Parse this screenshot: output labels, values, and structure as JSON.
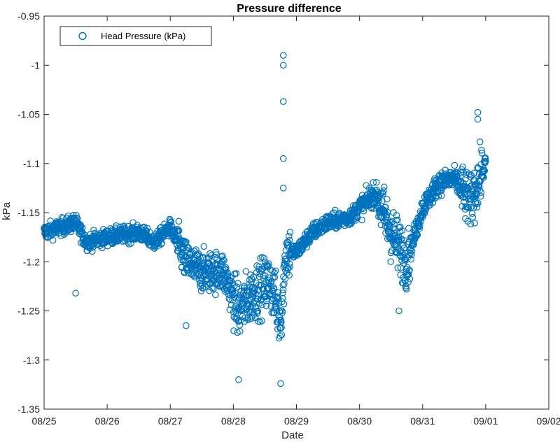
{
  "chart_data": {
    "type": "scatter",
    "title": "Pressure difference",
    "xlabel": "Date",
    "ylabel": "kPa",
    "x_axis": {
      "type": "date",
      "range": [
        "08/25",
        "09/02"
      ],
      "ticks": [
        "08/25",
        "08/26",
        "08/27",
        "08/28",
        "08/29",
        "08/30",
        "08/31",
        "09/01",
        "09/02"
      ]
    },
    "y_axis": {
      "reversed": true,
      "range": [
        -1.35,
        -0.95
      ],
      "ticks": [
        -0.95,
        -1,
        -1.05,
        -1.1,
        -1.15,
        -1.2,
        -1.25,
        -1.3,
        -1.35
      ],
      "tick_labels": [
        "-0.95",
        "-1",
        "-1.05",
        "-1.1",
        "-1.15",
        "-1.2",
        "-1.25",
        "-1.3",
        "-1.35"
      ]
    },
    "grid": false,
    "legend": {
      "position": "top-left",
      "entries": [
        "Head Pressure (kPa)"
      ]
    },
    "marker": "open-circle",
    "color": "#0072BD",
    "series": [
      {
        "name": "Head Pressure (kPa)",
        "points_description": "dense sampled trace",
        "trend": [
          [
            "08/25 00:00",
            -1.17
          ],
          [
            "08/25 06:00",
            -1.165
          ],
          [
            "08/25 12:00",
            -1.16
          ],
          [
            "08/25 16:00",
            -1.18
          ],
          [
            "08/26 00:00",
            -1.175
          ],
          [
            "08/26 12:00",
            -1.17
          ],
          [
            "08/26 18:00",
            -1.18
          ],
          [
            "08/27 00:00",
            -1.165
          ],
          [
            "08/27 06:00",
            -1.2
          ],
          [
            "08/27 12:00",
            -1.21
          ],
          [
            "08/27 20:00",
            -1.21
          ],
          [
            "08/28 02:00",
            -1.25
          ],
          [
            "08/28 08:00",
            -1.23
          ],
          [
            "08/28 14:00",
            -1.22
          ],
          [
            "08/28 18:00",
            -1.26
          ],
          [
            "08/28 20:00",
            -1.19
          ],
          [
            "08/29 00:00",
            -1.19
          ],
          [
            "08/29 06:00",
            -1.17
          ],
          [
            "08/29 12:00",
            -1.16
          ],
          [
            "08/29 20:00",
            -1.155
          ],
          [
            "08/30 06:00",
            -1.13
          ],
          [
            "08/30 12:00",
            -1.17
          ],
          [
            "08/30 18:00",
            -1.2
          ],
          [
            "08/31 00:00",
            -1.145
          ],
          [
            "08/31 06:00",
            -1.12
          ],
          [
            "08/31 12:00",
            -1.115
          ],
          [
            "08/31 18:00",
            -1.14
          ],
          [
            "09/01 00:00",
            -1.1
          ]
        ],
        "outliers": [
          [
            "08/28 19:00",
            -0.99
          ],
          [
            "08/28 19:00",
            -1.0
          ],
          [
            "08/28 19:00",
            -1.037
          ],
          [
            "08/28 19:00",
            -1.095
          ],
          [
            "08/28 19:00",
            -1.125
          ],
          [
            "08/25 12:00",
            -1.232
          ],
          [
            "08/31 21:00",
            -1.048
          ],
          [
            "08/31 21:00",
            -1.055
          ],
          [
            "08/30 15:00",
            -1.25
          ],
          [
            "08/28 18:00",
            -1.324
          ],
          [
            "08/28 02:00",
            -1.32
          ],
          [
            "08/27 06:00",
            -1.265
          ]
        ]
      }
    ]
  }
}
